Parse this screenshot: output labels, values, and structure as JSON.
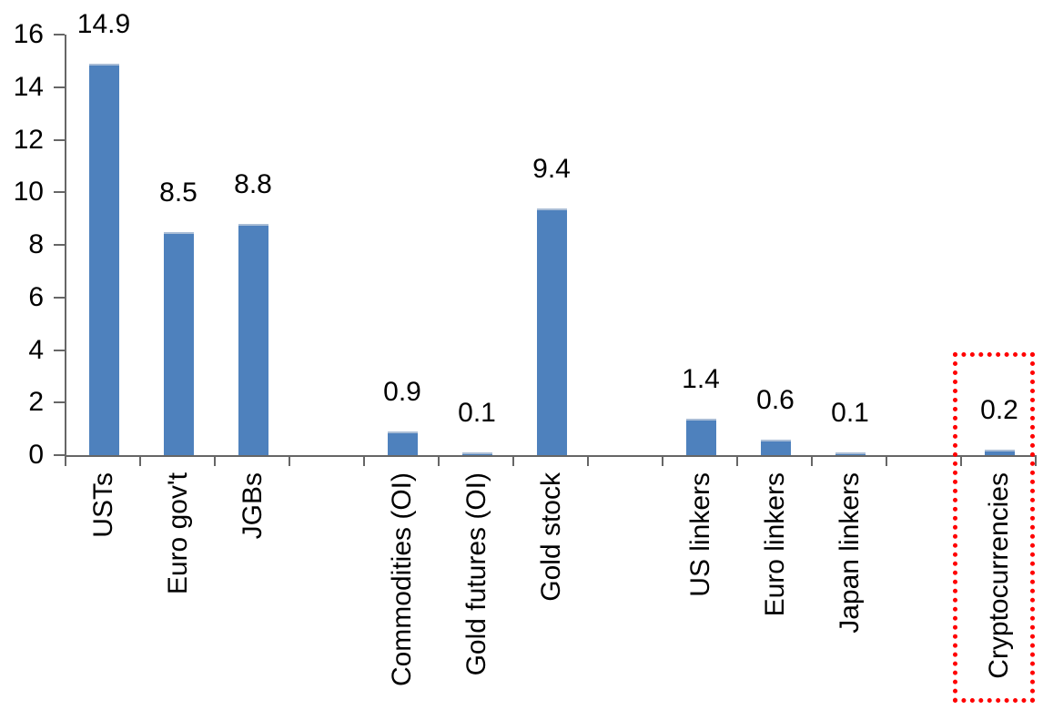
{
  "chart_data": {
    "type": "bar",
    "title": "",
    "xlabel": "",
    "ylabel": "",
    "categories": [
      "USTs",
      "Euro gov't",
      "JGBs",
      "",
      "Commodities (OI)",
      "Gold futures (OI)",
      "Gold stock",
      "",
      "US linkers",
      "Euro linkers",
      "Japan linkers",
      "",
      "Cryptocurrencies"
    ],
    "values": [
      14.9,
      8.5,
      8.8,
      null,
      0.9,
      0.1,
      9.4,
      null,
      1.4,
      0.6,
      0.1,
      null,
      0.2
    ],
    "value_labels": [
      "14.9",
      "8.5",
      "8.8",
      "",
      "0.9",
      "0.1",
      "9.4",
      "",
      "1.4",
      "0.6",
      "0.1",
      "",
      "0.2"
    ],
    "ylim": [
      0,
      16
    ],
    "yticks": [
      0,
      2,
      4,
      6,
      8,
      10,
      12,
      14,
      16
    ],
    "grid": false,
    "legend": false,
    "bar_color": "#4E81BD",
    "bar_top_edge_color": "#A9BDD6",
    "axis_color": "#666666",
    "text_color": "#000000",
    "highlight": {
      "category": "Cryptocurrencies",
      "shape": "red-dotted-rectangle",
      "color": "#FF0000"
    }
  }
}
